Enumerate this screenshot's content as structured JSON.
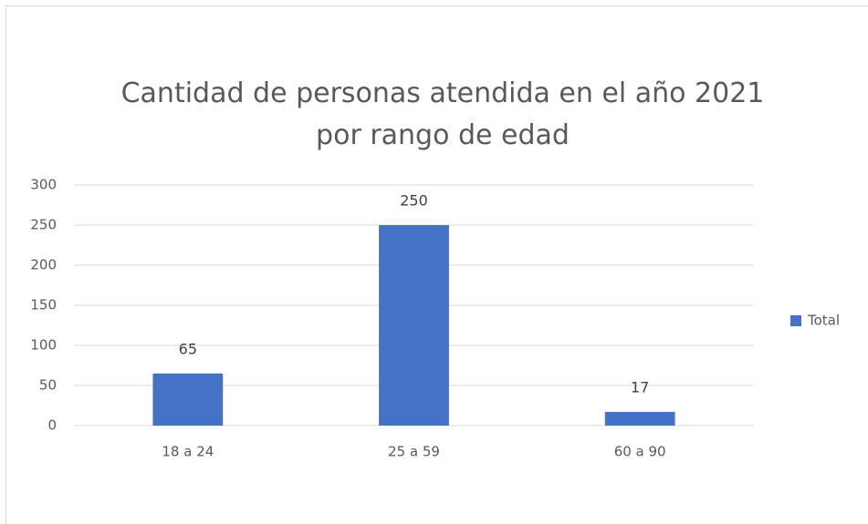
{
  "chart_data": {
    "type": "bar",
    "title": "Cantidad de personas atendida en el año 2021 por rango de edad",
    "categories": [
      "18 a 24",
      "25 a 59",
      "60 a 90"
    ],
    "series": [
      {
        "name": "Total",
        "color": "#4472c4",
        "values": [
          65,
          250,
          17
        ]
      }
    ],
    "ylim": [
      0,
      300
    ],
    "yticks": [
      0,
      50,
      100,
      150,
      200,
      250,
      300
    ],
    "grid": true,
    "legend": "right"
  }
}
